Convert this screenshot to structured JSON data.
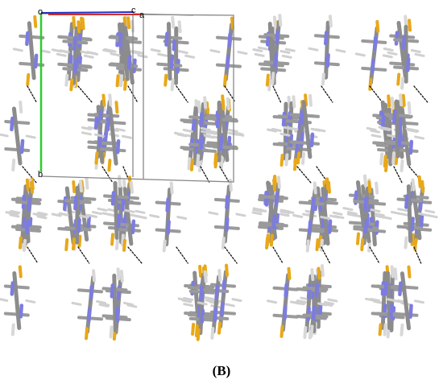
{
  "figure": {
    "axis_labels": {
      "origin": "o",
      "c": "c",
      "a": "a",
      "b": "b"
    },
    "caption": "(B)"
  }
}
